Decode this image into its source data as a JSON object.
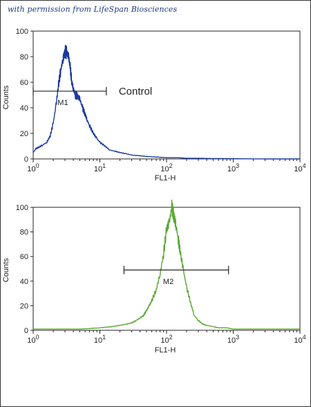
{
  "credit": "with permission from LifeSpan Biosciences",
  "chart_data": [
    {
      "type": "line",
      "color": "#1a3a9c",
      "xlabel": "FL1-H",
      "ylabel": "Counts",
      "xscale": "log",
      "xlim": [
        1,
        10000
      ],
      "ylim": [
        0,
        100
      ],
      "xticks": [
        1,
        10,
        100,
        1000,
        10000
      ],
      "yticks": [
        0,
        20,
        40,
        60,
        80,
        100
      ],
      "marker": {
        "label": "M1",
        "x_start": 1,
        "x_end": 12.5,
        "y": 53
      },
      "annotation": "Control",
      "series": [
        {
          "x": [
            1,
            1.1,
            1.2,
            1.4,
            1.6,
            1.8,
            2.0,
            2.2,
            2.4,
            2.6,
            2.8,
            3.0,
            3.2,
            3.4,
            3.6,
            3.8,
            4.0,
            4.3,
            4.6,
            5.0,
            5.5,
            6.0,
            6.5,
            7.0,
            8.0,
            9.0,
            10,
            12,
            14,
            17,
            20,
            25,
            30,
            40,
            50,
            70,
            100,
            150,
            200,
            300,
            500,
            1000,
            3000,
            10000
          ],
          "y": [
            5,
            8,
            9,
            11,
            13,
            18,
            28,
            42,
            58,
            70,
            78,
            84,
            83,
            80,
            71,
            60,
            55,
            50,
            49,
            47,
            40,
            35,
            30,
            26,
            20,
            16,
            13,
            10,
            7,
            6,
            5,
            4,
            3,
            2.5,
            2,
            1.5,
            1,
            1,
            0.5,
            0.5,
            0.3,
            0.2,
            0,
            0
          ]
        }
      ]
    },
    {
      "type": "line",
      "color": "#5aa732",
      "xlabel": "FL1-H",
      "ylabel": "Counts",
      "xscale": "log",
      "xlim": [
        1,
        10000
      ],
      "ylim": [
        0,
        100
      ],
      "xticks": [
        1,
        10,
        100,
        1000,
        10000
      ],
      "yticks": [
        0,
        20,
        40,
        60,
        80,
        100
      ],
      "marker": {
        "label": "M2",
        "x_start": 23,
        "x_end": 850,
        "y": 49
      },
      "series": [
        {
          "x": [
            1,
            2,
            5,
            10,
            15,
            20,
            25,
            30,
            35,
            40,
            45,
            50,
            55,
            60,
            70,
            80,
            90,
            100,
            110,
            120,
            130,
            140,
            150,
            160,
            180,
            200,
            230,
            260,
            300,
            350,
            400,
            500,
            600,
            800,
            1000,
            2000,
            5000,
            10000
          ],
          "y": [
            1,
            1,
            1,
            2,
            3,
            4,
            5,
            6,
            8,
            10,
            12,
            16,
            20,
            24,
            33,
            46,
            62,
            82,
            88,
            100,
            92,
            84,
            74,
            64,
            48,
            35,
            22,
            12,
            8,
            5,
            4,
            3,
            2,
            2,
            1,
            1,
            1,
            1
          ]
        }
      ]
    }
  ]
}
